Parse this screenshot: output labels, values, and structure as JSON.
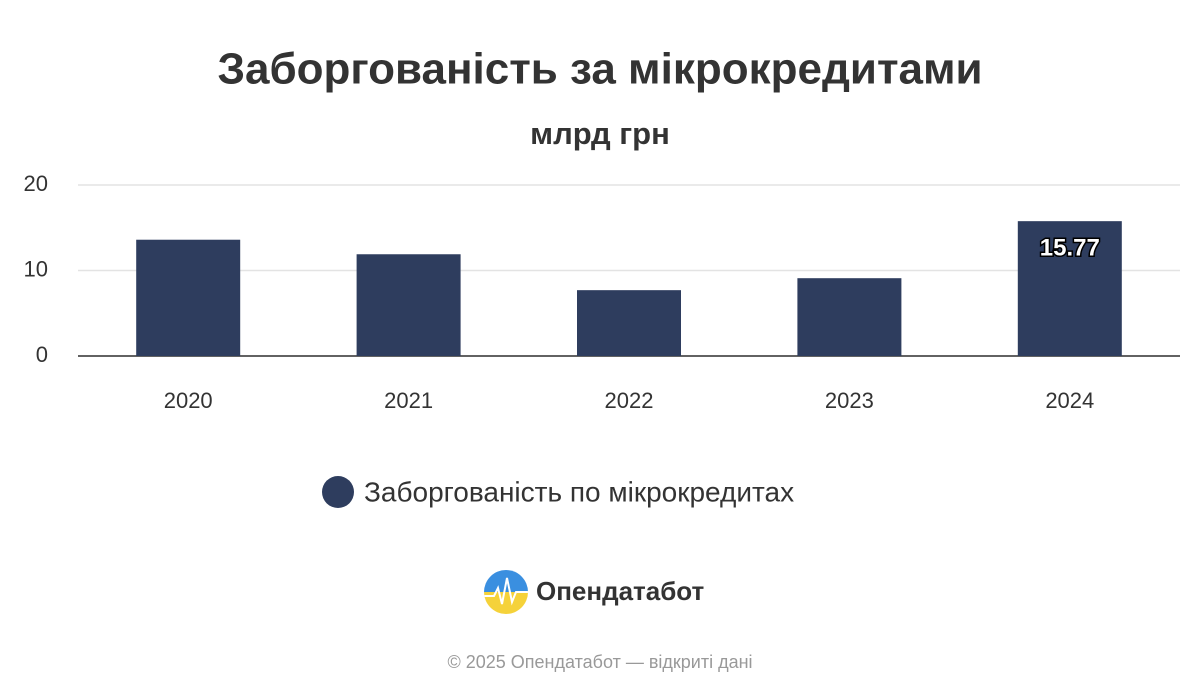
{
  "chart_data": {
    "type": "bar",
    "title": "Заборгованість за мікрокредитами",
    "subtitle": "млрд грн",
    "categories": [
      "2020",
      "2021",
      "2022",
      "2023",
      "2024"
    ],
    "series": [
      {
        "name": "Заборгованість по мікрокредитах",
        "color": "#2e3d5e",
        "values": [
          13.6,
          11.9,
          7.7,
          9.1,
          15.77
        ]
      }
    ],
    "value_labels": [
      null,
      null,
      null,
      null,
      "15.77"
    ],
    "ylim": [
      0,
      20
    ],
    "yticks": [
      0,
      10,
      20
    ],
    "grid": true,
    "legend": "bottom"
  },
  "footer": {
    "brand": "Опендатабот",
    "copyright": "© 2025 Опендатабот — відкриті дані"
  }
}
